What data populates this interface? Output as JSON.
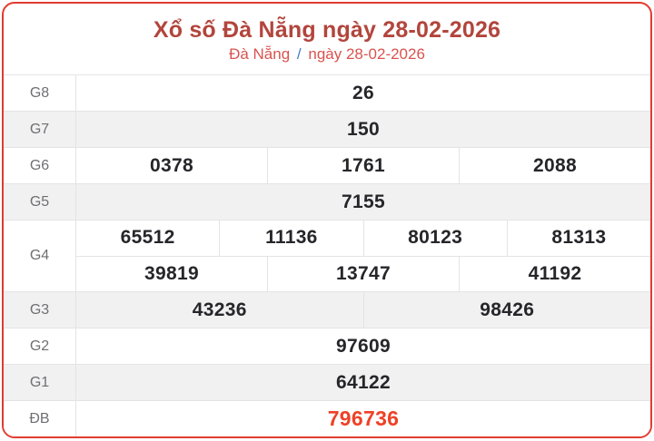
{
  "header": {
    "title": "Xổ số Đà Nẵng ngày 28-02-2026",
    "breadcrumb_region": "Đà Nẵng",
    "breadcrumb_separator": "/",
    "breadcrumb_date": "ngày 28-02-2026"
  },
  "colors": {
    "card_border": "#e23b31",
    "title_red": "#b2453c",
    "breadcrumb_red": "#d9534f",
    "separator_blue": "#4a7cc0",
    "value_text": "#26262a",
    "label_text": "#6f6f72",
    "alt_row_bg": "#f1f1f2",
    "divider": "#e4e4e6",
    "special_prize_red": "#ee4126"
  },
  "table": {
    "rows": [
      {
        "label": "G8",
        "special": false,
        "groups": [
          [
            "26"
          ]
        ]
      },
      {
        "label": "G7",
        "special": false,
        "groups": [
          [
            "150"
          ]
        ]
      },
      {
        "label": "G6",
        "special": false,
        "groups": [
          [
            "0378",
            "1761",
            "2088"
          ]
        ]
      },
      {
        "label": "G5",
        "special": false,
        "groups": [
          [
            "7155"
          ]
        ]
      },
      {
        "label": "G4",
        "special": false,
        "groups": [
          [
            "65512",
            "11136",
            "80123",
            "81313"
          ],
          [
            "39819",
            "13747",
            "41192"
          ]
        ]
      },
      {
        "label": "G3",
        "special": false,
        "groups": [
          [
            "43236",
            "98426"
          ]
        ]
      },
      {
        "label": "G2",
        "special": false,
        "groups": [
          [
            "97609"
          ]
        ]
      },
      {
        "label": "G1",
        "special": false,
        "groups": [
          [
            "64122"
          ]
        ]
      },
      {
        "label": "ĐB",
        "special": true,
        "groups": [
          [
            "796736"
          ]
        ]
      }
    ]
  }
}
